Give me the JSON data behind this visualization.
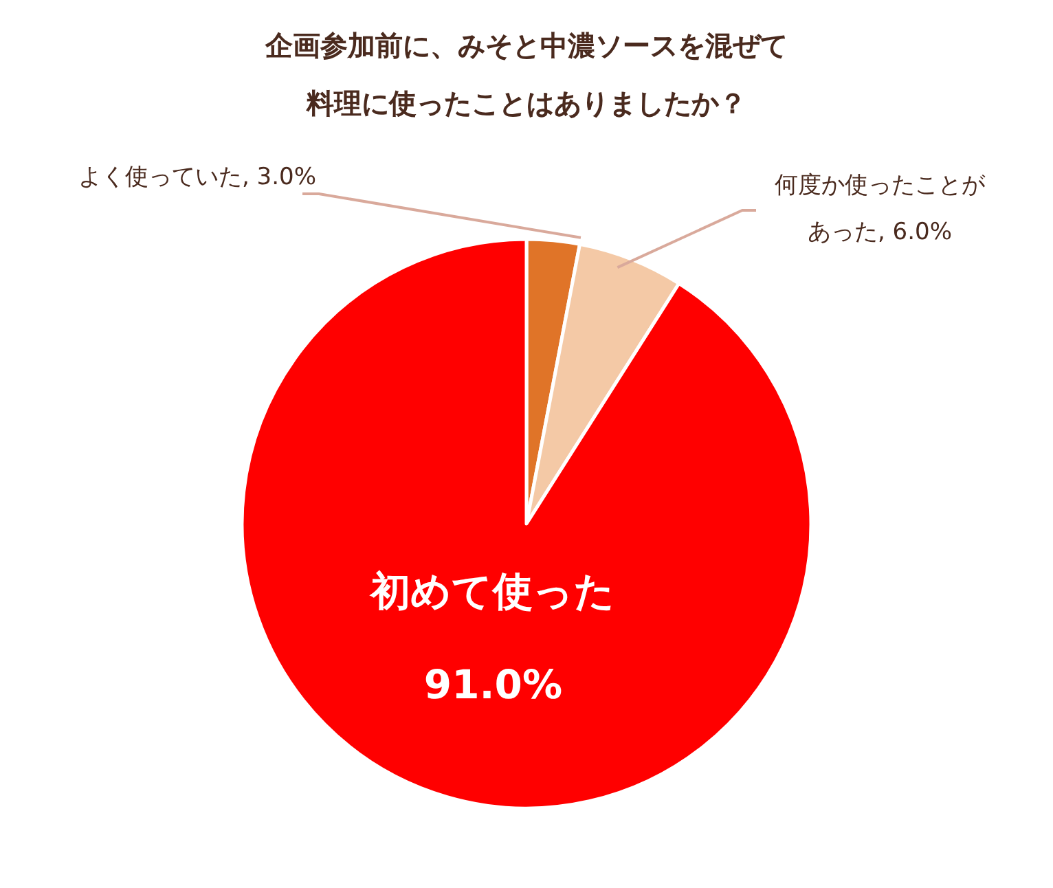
{
  "chart_data": {
    "type": "pie",
    "title": "企画参加前に、みそと中濃ソースを混ぜて料理に使ったことはありましたか？",
    "categories": [
      "よく使っていた",
      "何度か使ったことがあった",
      "初めて使った"
    ],
    "values": [
      3.0,
      6.0,
      91.0
    ],
    "colors": [
      "#e07428",
      "#f4c9a6",
      "#ff0000"
    ],
    "value_labels": [
      "3.0%",
      "6.0%",
      "91.0%"
    ]
  }
}
